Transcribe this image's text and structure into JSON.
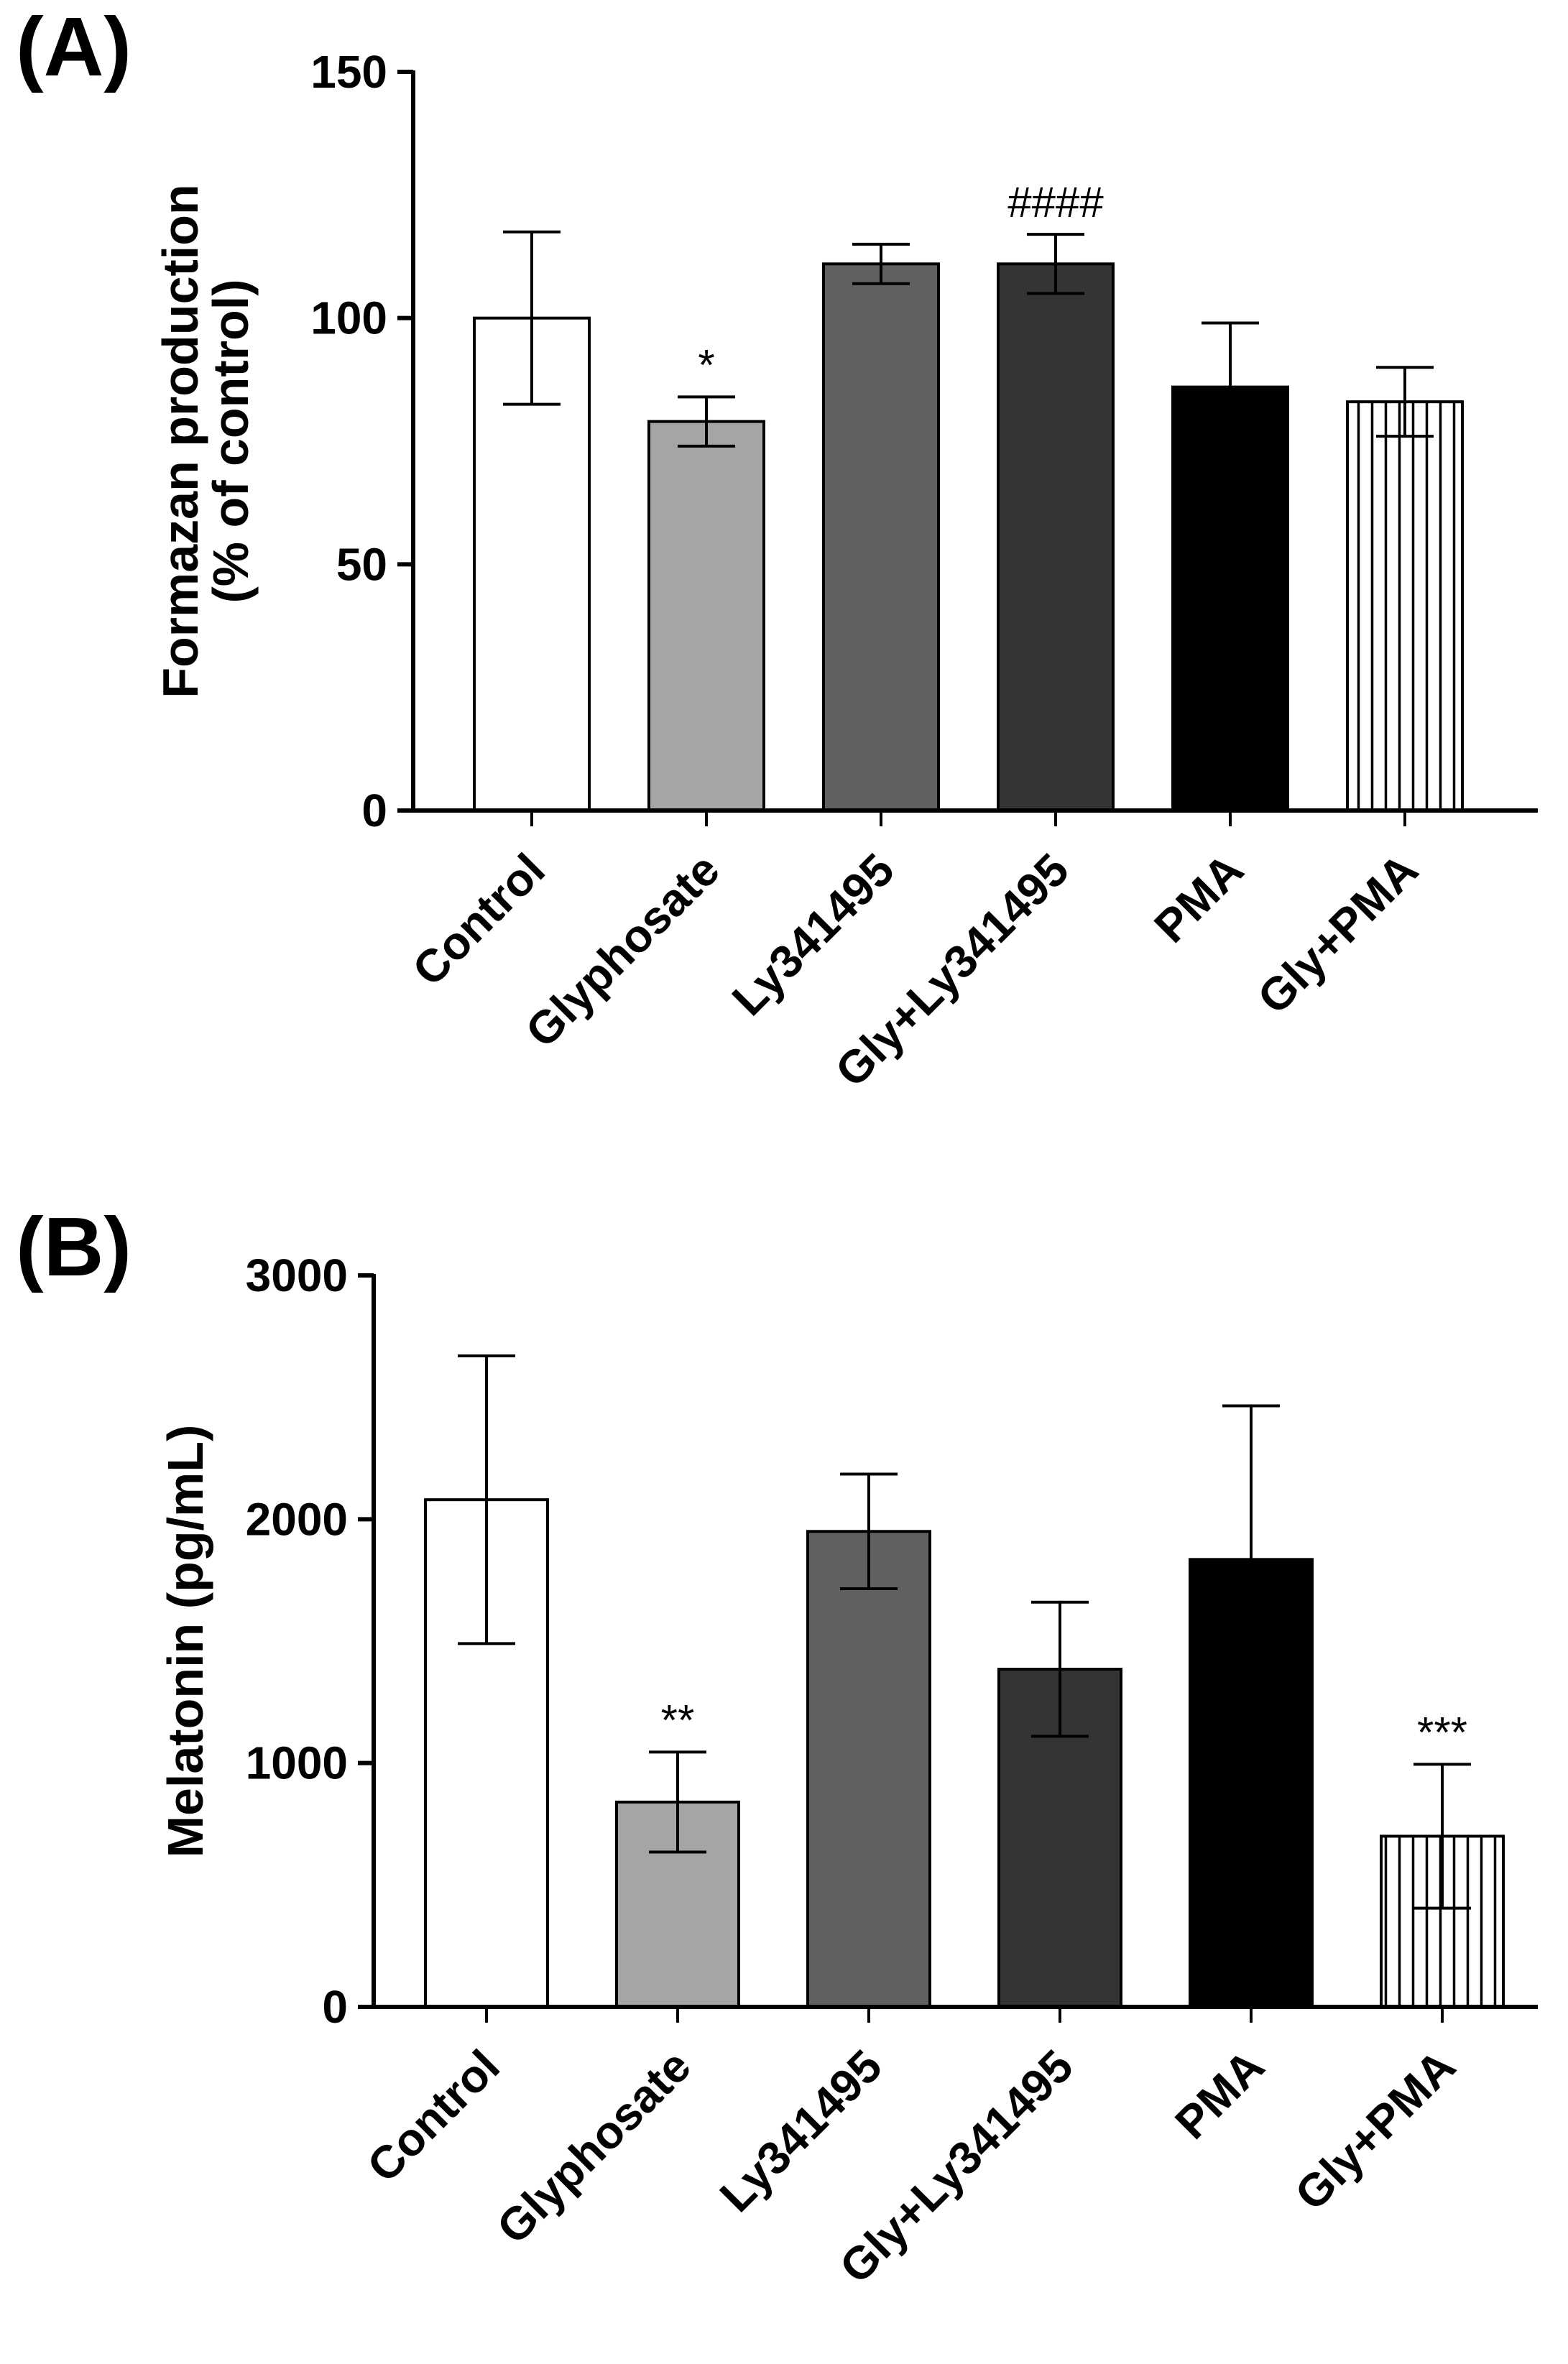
{
  "chart_data": [
    {
      "type": "bar",
      "panel_label": "(A)",
      "title": "",
      "xlabel": "",
      "ylabel_lines": [
        "Formazan production",
        "(% of control)"
      ],
      "ylim": [
        0,
        150
      ],
      "yticks": [
        0,
        50,
        100,
        150
      ],
      "grid": false,
      "categories": [
        "Control",
        "Glyphosate",
        "Ly341495",
        "Gly+Ly341495",
        "PMA",
        "Gly+PMA"
      ],
      "values": [
        100,
        79,
        111,
        111,
        86,
        83
      ],
      "errors": [
        17.5,
        5,
        4,
        6,
        13,
        7
      ],
      "annotations": [
        "",
        "*",
        "",
        "####",
        "",
        ""
      ],
      "colors": [
        "#ffffff",
        "#a5a5a8",
        "#616161",
        "#343434",
        "#000000",
        "#ffffff"
      ],
      "patterns": [
        "none",
        "none",
        "none",
        "none",
        "none",
        "vertical-lines"
      ]
    },
    {
      "type": "bar",
      "panel_label": "(B)",
      "title": "",
      "xlabel": "",
      "ylabel_lines": [
        "Melatonin (pg/mL)"
      ],
      "ylim": [
        0,
        3000
      ],
      "yticks": [
        0,
        1000,
        2000,
        3000
      ],
      "grid": false,
      "categories": [
        "Control",
        "Glyphosate",
        "Ly341495",
        "Gly+Ly341495",
        "PMA",
        "Gly+PMA"
      ],
      "values": [
        2080,
        840,
        1950,
        1385,
        1835,
        700
      ],
      "errors": [
        590,
        205,
        235,
        275,
        630,
        295
      ],
      "annotations": [
        "",
        "**",
        "",
        "",
        "",
        "***"
      ],
      "colors": [
        "#ffffff",
        "#a5a5a8",
        "#616161",
        "#343434",
        "#000000",
        "#ffffff"
      ],
      "patterns": [
        "none",
        "none",
        "none",
        "none",
        "none",
        "vertical-lines"
      ]
    }
  ]
}
